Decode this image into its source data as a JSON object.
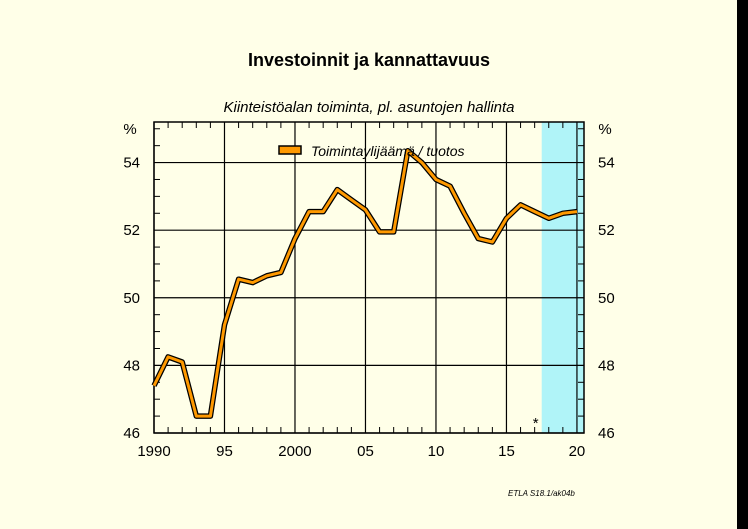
{
  "chart_data": {
    "type": "line",
    "title": "Investoinnit ja kannattavuus",
    "subtitle": "Kiinteistöalan toiminta, pl. asuntojen hallinta",
    "ylabel_left": "%",
    "ylabel_right": "%",
    "ylim": [
      46,
      55.2
    ],
    "y_ticks": [
      46,
      48,
      50,
      52,
      54
    ],
    "xlim": [
      1990,
      2020.5
    ],
    "x_ticks": [
      {
        "value": 1990,
        "label": "1990"
      },
      {
        "value": 1995,
        "label": "95"
      },
      {
        "value": 2000,
        "label": "2000"
      },
      {
        "value": 2005,
        "label": "05"
      },
      {
        "value": 2010,
        "label": "10"
      },
      {
        "value": 2015,
        "label": "15"
      },
      {
        "value": 2020,
        "label": "20"
      }
    ],
    "forecast_start": 2017.5,
    "forecast_marker": "*",
    "forecast_color": "#b0f4f8",
    "line_color": "#ff9900",
    "grid": true,
    "legend_position": "top-center",
    "series": [
      {
        "name": "Toimintaylijäämä / tuotos",
        "x": [
          1990,
          1991,
          1992,
          1993,
          1994,
          1995,
          1996,
          1997,
          1998,
          1999,
          2000,
          2001,
          2002,
          2003,
          2004,
          2005,
          2006,
          2007,
          2008,
          2009,
          2010,
          2011,
          2012,
          2013,
          2014,
          2015,
          2016,
          2017,
          2018,
          2019,
          2020
        ],
        "values": [
          47.4,
          48.25,
          48.1,
          46.5,
          46.5,
          49.2,
          50.55,
          50.45,
          50.65,
          50.75,
          51.75,
          52.55,
          52.55,
          53.2,
          52.9,
          52.6,
          51.95,
          51.95,
          54.35,
          54.0,
          53.5,
          53.3,
          52.5,
          51.75,
          51.65,
          52.35,
          52.75,
          52.55,
          52.35,
          52.5,
          52.55
        ]
      }
    ],
    "credit": "ETLA S18.1/ak04b"
  }
}
